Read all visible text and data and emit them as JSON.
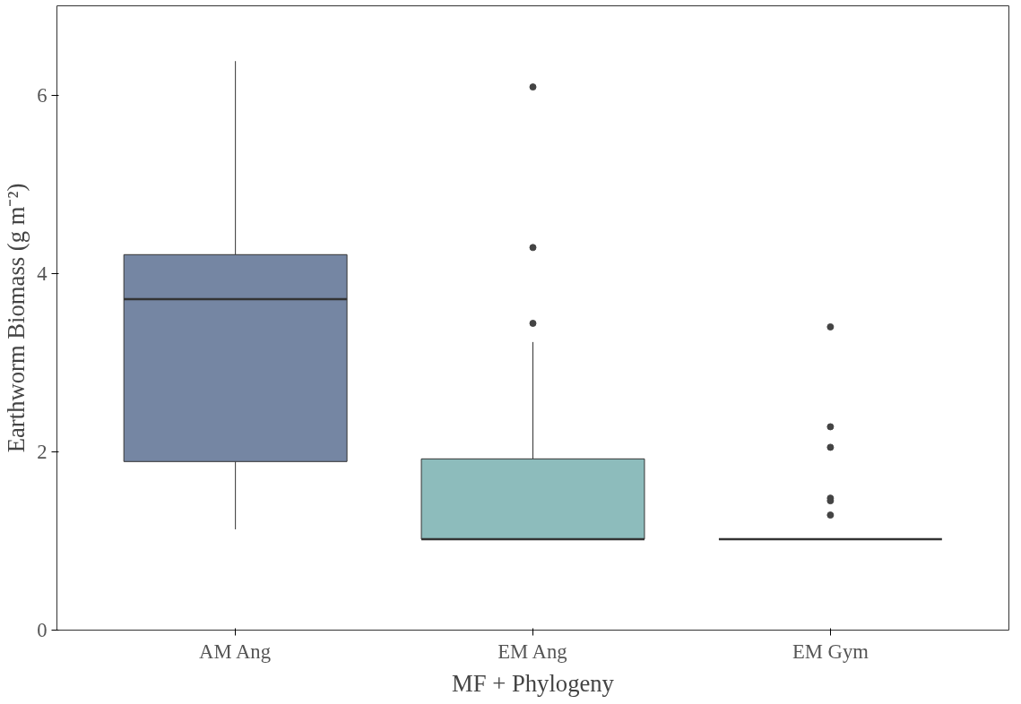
{
  "chart_data": {
    "type": "box",
    "xlabel": "MF + Phylogeny",
    "ylabel": "Earthworm Biomass (g m⁻²)",
    "categories": [
      "AM Ang",
      "EM Ang",
      "EM Gym"
    ],
    "colors": [
      "#7586a3",
      "#8dbcbc",
      null
    ],
    "boxes": [
      {
        "low": 1.13,
        "q1": 1.89,
        "median": 3.71,
        "q3": 4.21,
        "high": 6.38
      },
      {
        "low": 1.02,
        "q1": 1.02,
        "median": 1.02,
        "q3": 1.92,
        "high": 3.23,
        "outliers": [
          6.09,
          4.29,
          3.44
        ]
      },
      {
        "low": 1.02,
        "q1": 1.02,
        "median": 1.02,
        "q3": 1.02,
        "high": 1.02,
        "outliers": [
          3.4,
          2.28,
          2.05,
          1.48,
          1.45,
          1.29
        ]
      }
    ],
    "ylim": [
      0,
      7
    ],
    "yticks": [
      0,
      2,
      4,
      6
    ],
    "grid": false
  }
}
